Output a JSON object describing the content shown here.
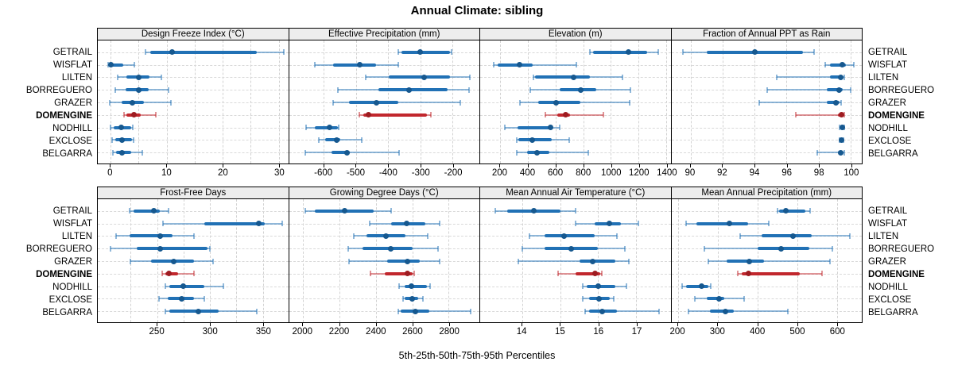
{
  "colors": {
    "blue": "#2171b5",
    "blue_dot": "#16588f",
    "red": "#c1272d",
    "red_dot": "#9e1c21",
    "grid": "#d4d4d4",
    "strip_bg": "#ededed"
  },
  "chart_data": {
    "type": "percentile-dotplot",
    "title": "Annual Climate: sibling",
    "xlabel": "5th-25th-50th-75th-95th Percentiles",
    "legend_position": "none",
    "grid": "dashed",
    "sites": [
      "GETRAIL",
      "WISFLAT",
      "LILTEN",
      "BORREGUERO",
      "GRAZER",
      "DOMENGINE",
      "NODHILL",
      "EXCLOSE",
      "BELGARRA"
    ],
    "highlight_site": "DOMENGINE",
    "percentiles": [
      5,
      25,
      50,
      75,
      95
    ],
    "panels": [
      {
        "title": "Design Freeze Index (°C)",
        "xlim": [
          -2.3,
          31.7
        ],
        "tick_values": [
          0,
          10,
          20,
          30
        ],
        "tick_labels": [
          "0",
          "10",
          "20",
          "30"
        ],
        "gridlines": [
          0,
          5,
          10,
          15,
          20,
          25,
          30
        ],
        "series": [
          [
            6.2,
            7.1,
            11.0,
            26.1,
            30.9
          ],
          [
            -0.4,
            -0.2,
            0.1,
            2.2,
            4.2
          ],
          [
            1.3,
            2.8,
            5.0,
            6.9,
            9.0
          ],
          [
            0.8,
            2.7,
            5.0,
            6.8,
            10.4
          ],
          [
            -0.2,
            2.0,
            3.9,
            5.9,
            10.7
          ],
          [
            2.4,
            2.8,
            4.1,
            5.4,
            8.0
          ],
          [
            0.0,
            0.5,
            1.9,
            3.7,
            4.0
          ],
          [
            0.2,
            0.8,
            2.0,
            3.8,
            4.1
          ],
          [
            0.4,
            0.9,
            2.0,
            3.7,
            5.7
          ]
        ]
      },
      {
        "title": "Effective Precipitation (mm)",
        "xlim": [
          -708,
          -117
        ],
        "tick_values": [
          -600,
          -500,
          -400,
          -300,
          -200
        ],
        "tick_labels": [
          "-600",
          "-500",
          "-400",
          "-300",
          "-200"
        ],
        "gridlines": [
          -600,
          -500,
          -400,
          -300,
          -200
        ],
        "series": [
          [
            -369,
            -360,
            -302,
            -208,
            -204
          ],
          [
            -628,
            -571,
            -489,
            -438,
            -369
          ],
          [
            -470,
            -398,
            -289,
            -208,
            -147
          ],
          [
            -557,
            -430,
            -335,
            -216,
            -150
          ],
          [
            -571,
            -521,
            -436,
            -369,
            -177
          ],
          [
            -490,
            -478,
            -462,
            -280,
            -268
          ],
          [
            -656,
            -628,
            -581,
            -556,
            -553
          ],
          [
            -616,
            -595,
            -561,
            -549,
            -482
          ],
          [
            -657,
            -575,
            -528,
            -519,
            -367
          ]
        ]
      },
      {
        "title": "Elevation (m)",
        "xlim": [
          55,
          1432
        ],
        "tick_values": [
          200,
          400,
          600,
          800,
          1000,
          1200,
          1400
        ],
        "tick_labels": [
          "200",
          "400",
          "600",
          "800",
          "1000",
          "1200",
          "1400"
        ],
        "gridlines": [
          200,
          400,
          600,
          800,
          1000,
          1200,
          1400
        ],
        "series": [
          [
            848,
            870,
            1126,
            1261,
            1341
          ],
          [
            153,
            181,
            341,
            434,
            750
          ],
          [
            440,
            453,
            730,
            848,
            1082
          ],
          [
            416,
            632,
            782,
            895,
            1144
          ],
          [
            341,
            472,
            603,
            782,
            1135
          ],
          [
            524,
            613,
            675,
            707,
            947
          ],
          [
            234,
            327,
            561,
            575,
            632
          ],
          [
            318,
            331,
            434,
            575,
            697
          ],
          [
            322,
            397,
            466,
            557,
            838
          ]
        ]
      },
      {
        "title": "Fraction of Annual PPT as Rain",
        "xlim": [
          88.8,
          100.7
        ],
        "tick_values": [
          90,
          92,
          94,
          96,
          98,
          100
        ],
        "tick_labels": [
          "90",
          "92",
          "94",
          "96",
          "98",
          "100"
        ],
        "gridlines": [
          90,
          92,
          94,
          96,
          98,
          100
        ],
        "series": [
          [
            89.5,
            91.0,
            94.0,
            97.0,
            97.7
          ],
          [
            98.4,
            98.7,
            99.5,
            99.7,
            100.2
          ],
          [
            95.4,
            98.7,
            99.4,
            99.5,
            99.6
          ],
          [
            94.8,
            98.5,
            99.3,
            99.5,
            100.0
          ],
          [
            94.3,
            98.5,
            99.1,
            99.3,
            99.4
          ],
          [
            96.6,
            99.2,
            99.45,
            99.55,
            99.6
          ],
          [
            99.3,
            99.4,
            99.5,
            99.55,
            99.6
          ],
          [
            99.3,
            99.38,
            99.45,
            99.5,
            99.55
          ],
          [
            97.9,
            99.2,
            99.4,
            99.5,
            99.6
          ]
        ]
      },
      {
        "title": "Frost-Free Days",
        "xlim": [
          194,
          374
        ],
        "tick_values": [
          250,
          300,
          350
        ],
        "tick_labels": [
          "250",
          "300",
          "350"
        ],
        "gridlines": [
          225,
          250,
          275,
          300,
          325,
          350
        ],
        "series": [
          [
            224,
            228,
            247,
            253,
            261
          ],
          [
            256,
            295,
            346,
            352,
            368
          ],
          [
            211,
            224,
            253,
            265,
            285
          ],
          [
            206,
            231,
            253,
            298,
            300
          ],
          [
            225,
            244,
            266,
            285,
            303
          ],
          [
            255,
            258,
            261,
            270,
            285
          ],
          [
            258,
            262,
            275,
            295,
            313
          ],
          [
            252,
            260,
            273,
            285,
            295
          ],
          [
            258,
            262,
            289,
            308,
            344
          ]
        ]
      },
      {
        "title": "Growing Degree Days (°C)",
        "xlim": [
          1923,
          2968
        ],
        "tick_values": [
          2000,
          2200,
          2400,
          2600,
          2800
        ],
        "tick_labels": [
          "2000",
          "2200",
          "2400",
          "2600",
          "2800"
        ],
        "gridlines": [
          2000,
          2200,
          2400,
          2600,
          2800
        ],
        "series": [
          [
            2012,
            2064,
            2228,
            2386,
            2483
          ],
          [
            2364,
            2485,
            2568,
            2671,
            2750
          ],
          [
            2278,
            2350,
            2457,
            2564,
            2685
          ],
          [
            2250,
            2328,
            2481,
            2600,
            2742
          ],
          [
            2254,
            2464,
            2571,
            2642,
            2750
          ],
          [
            2371,
            2450,
            2574,
            2600,
            2611
          ],
          [
            2528,
            2556,
            2593,
            2680,
            2697
          ],
          [
            2547,
            2560,
            2600,
            2630,
            2660
          ],
          [
            2521,
            2536,
            2617,
            2692,
            2920
          ]
        ]
      },
      {
        "title": "Mean Annual Air Temperature (°C)",
        "xlim": [
          12.9,
          17.9
        ],
        "tick_values": [
          14,
          15,
          16,
          17
        ],
        "tick_labels": [
          "14",
          "15",
          "16",
          "17"
        ],
        "gridlines": [
          14,
          15,
          16,
          17
        ],
        "series": [
          [
            13.3,
            13.6,
            14.3,
            15.0,
            15.4
          ],
          [
            15.4,
            15.9,
            16.3,
            16.6,
            17.05
          ],
          [
            14.2,
            14.6,
            15.1,
            15.9,
            16.5
          ],
          [
            14.0,
            14.6,
            15.3,
            16.0,
            16.7
          ],
          [
            13.9,
            15.5,
            15.85,
            16.45,
            16.8
          ],
          [
            14.95,
            15.4,
            15.92,
            16.05,
            16.1
          ],
          [
            15.6,
            15.7,
            16.0,
            16.45,
            16.75
          ],
          [
            15.6,
            15.75,
            16.03,
            16.3,
            16.4
          ],
          [
            15.65,
            15.75,
            16.1,
            16.5,
            17.6
          ]
        ]
      },
      {
        "title": "Mean Annual Precipitation (mm)",
        "xlim": [
          183,
          663
        ],
        "tick_values": [
          200,
          300,
          400,
          500,
          600
        ],
        "tick_labels": [
          "200",
          "300",
          "400",
          "500",
          "600"
        ],
        "gridlines": [
          200,
          300,
          400,
          500,
          600
        ],
        "series": [
          [
            450,
            455,
            472,
            520,
            533
          ],
          [
            221,
            247,
            330,
            377,
            429
          ],
          [
            357,
            410,
            489,
            537,
            633
          ],
          [
            267,
            400,
            460,
            530,
            589
          ],
          [
            277,
            323,
            380,
            417,
            583
          ],
          [
            350,
            360,
            377,
            507,
            563
          ],
          [
            210,
            220,
            260,
            277,
            283
          ],
          [
            243,
            273,
            303,
            317,
            367
          ],
          [
            227,
            280,
            320,
            340,
            477
          ]
        ]
      }
    ]
  }
}
